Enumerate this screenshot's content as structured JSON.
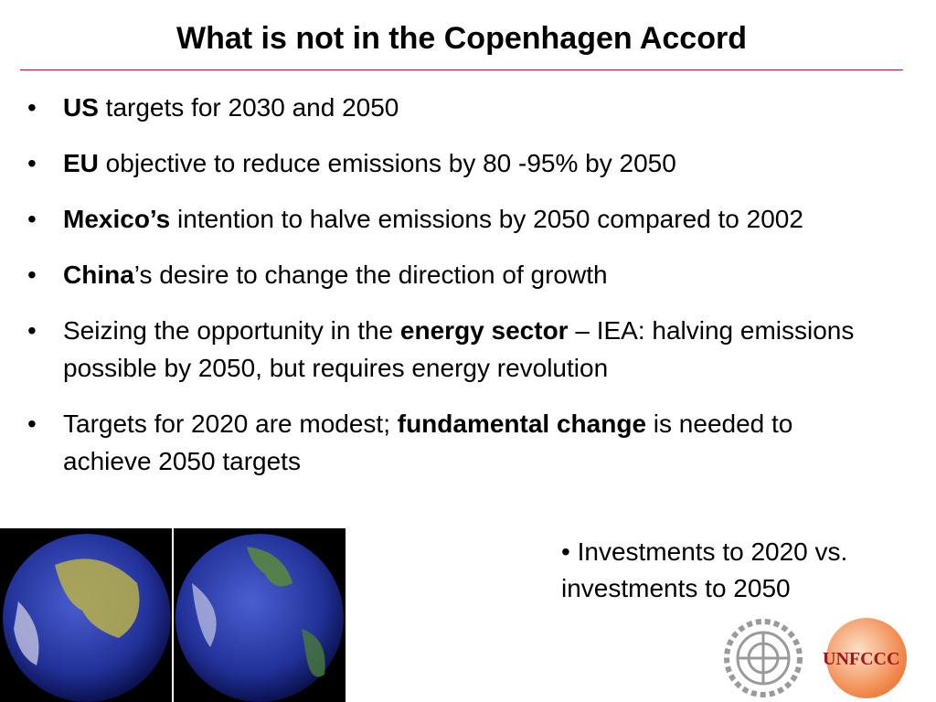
{
  "title": "What is not in the Copenhagen Accord",
  "bullets": [
    {
      "segments": [
        {
          "text": "US",
          "bold": true
        },
        {
          "text": " targets for 2030 and 2050",
          "bold": false
        }
      ]
    },
    {
      "segments": [
        {
          "text": "EU",
          "bold": true
        },
        {
          "text": " objective to reduce emissions by 80 -95% by 2050",
          "bold": false
        }
      ]
    },
    {
      "segments": [
        {
          "text": "Mexico’s",
          "bold": true
        },
        {
          "text": " intention to halve emissions by 2050 compared to 2002",
          "bold": false
        }
      ]
    },
    {
      "segments": [
        {
          "text": "China",
          "bold": true
        },
        {
          "text": "’s desire to change the direction of growth",
          "bold": false
        }
      ]
    },
    {
      "segments": [
        {
          "text": "Seizing the opportunity in the ",
          "bold": false
        },
        {
          "text": "energy sector",
          "bold": true
        },
        {
          "text": " – IEA: halving emissions possible by 2050, but requires energy revolution",
          "bold": false
        }
      ]
    },
    {
      "segments": [
        {
          "text": "Targets for 2020 are modest; ",
          "bold": false
        },
        {
          "text": "fundamental change",
          "bold": true
        },
        {
          "text": " is needed to achieve 2050 targets",
          "bold": false
        }
      ]
    }
  ],
  "side_note": "Investments to 2020 vs. investments to 2050",
  "logo_text": "UNFCCC"
}
